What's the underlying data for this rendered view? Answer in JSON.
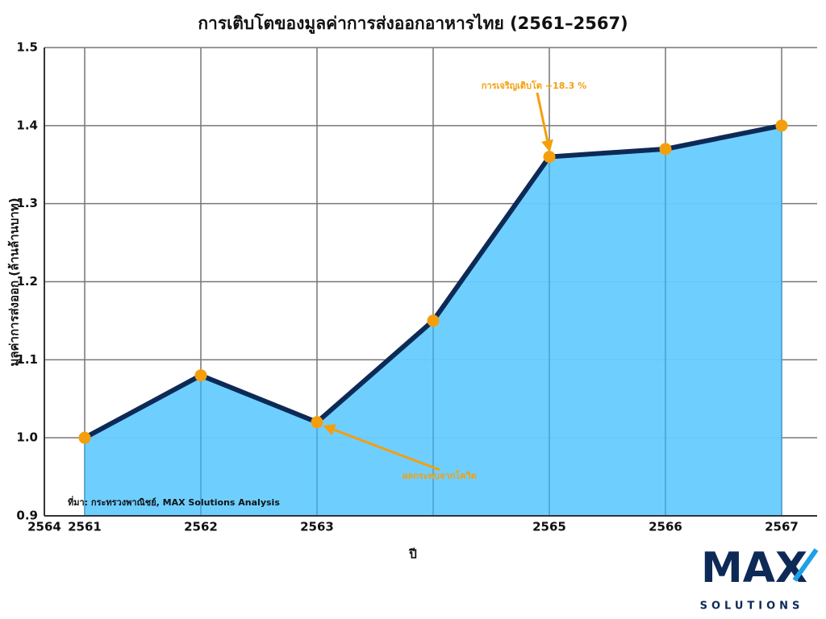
{
  "chart_data": {
    "type": "area-line",
    "title": "การเติบโตของมูลค่าการส่งออกอาหารไทย (2561–2567)",
    "x_label": "ปี",
    "y_label": "มูลค่าการส่งออก (ล้านล้านบาท)",
    "categories": [
      "2561",
      "2562",
      "2563",
      null,
      "2565",
      "2566",
      "2567"
    ],
    "stray_x_label": "2564",
    "values": [
      1.0,
      1.08,
      1.02,
      1.15,
      1.36,
      1.37,
      1.4
    ],
    "line_color": "#0d2a57",
    "fill_color": "#66ccff",
    "marker_color": "#f59e0b",
    "ylim": [
      0.9,
      1.5
    ],
    "yticks": [
      0.9,
      {
        "value": 1.0,
        "label": "1.0"
      },
      1.1,
      1.2,
      1.3,
      1.4,
      1.5
    ],
    "grid": true,
    "annotations": [
      "การเจริญเติบโต +18.3 %",
      "ผลกระทบจากโควิด"
    ],
    "source": "ที่มา: กระทรวงพาณิชย์, MAX Solutions Analysis"
  },
  "logo": {
    "mark": "MAX",
    "tagline": "SOLUTIONS"
  }
}
